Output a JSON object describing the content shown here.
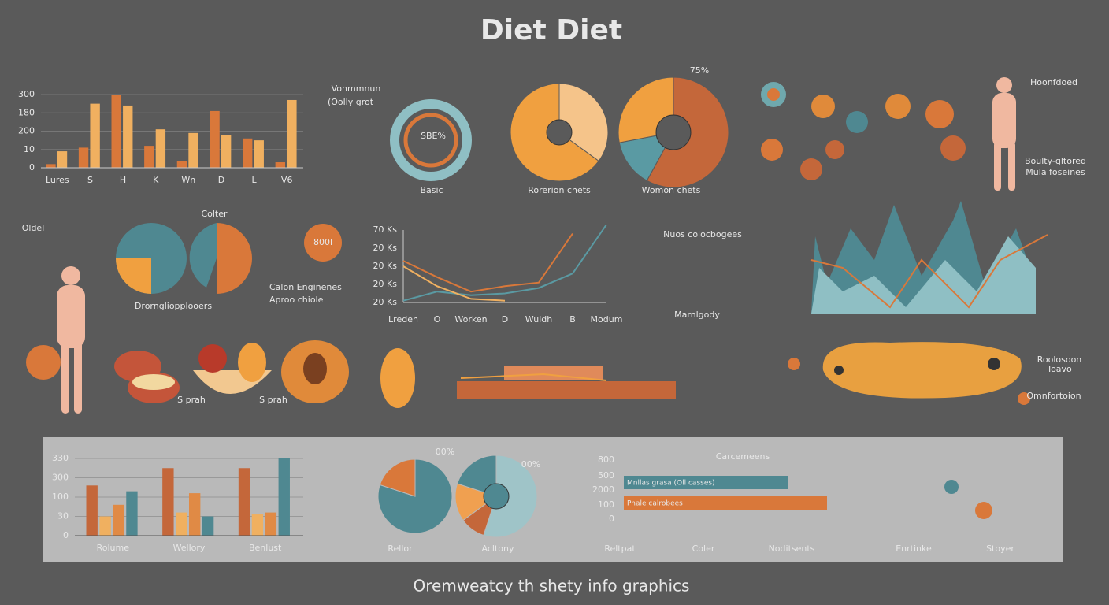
{
  "title": "Diet Diet",
  "subtitle": "Oremweatcy th shety info graphics",
  "chart_data": [
    {
      "type": "bar",
      "categories": [
        "Lures",
        "S",
        "H",
        "K",
        "Wn",
        "D",
        "L",
        "V6"
      ],
      "ylim": [
        0,
        4
      ],
      "yticks": [
        0,
        {
          "value": 1,
          "label": "10"
        },
        {
          "value": 2,
          "label": "200"
        },
        {
          "value": 3,
          "label": "180"
        },
        {
          "value": 4,
          "label": "300"
        }
      ],
      "grid": true,
      "series": [
        {
          "color": "#d9783a",
          "values": [
            0.2,
            1.1,
            4,
            1.2,
            0.35,
            3.1,
            1.6,
            0.3
          ]
        },
        {
          "color": "#f0b060",
          "values": [
            0.9,
            3.5,
            3.4,
            2.1,
            1.9,
            1.8,
            1.5,
            3.7
          ]
        }
      ]
    },
    {
      "type": "line",
      "categories": [
        "Lreden",
        "O",
        "Worken",
        "D",
        "Wuldh",
        "B",
        "Modum"
      ],
      "ylim": [
        0,
        4
      ],
      "yticks": [
        {
          "value": 0,
          "label": "20 Ks"
        },
        {
          "value": 1,
          "label": "20 Ks"
        },
        {
          "value": 2,
          "label": "20 Ks"
        },
        {
          "value": 3,
          "label": "20 Ks"
        },
        {
          "value": 4,
          "label": "70 Ks"
        }
      ],
      "series": [
        {
          "color": "#5a9aa3",
          "values": [
            0.1,
            0.6,
            0.4,
            0.5,
            0.8,
            1.6,
            4.3
          ]
        },
        {
          "color": "#d9783a",
          "values": [
            2.3,
            1.4,
            0.6,
            0.9,
            1.1,
            3.8,
            null
          ]
        },
        {
          "color": "#f0b060",
          "values": [
            2.0,
            0.9,
            0.2,
            0.1,
            null,
            null,
            null
          ]
        }
      ]
    },
    {
      "type": "bar",
      "categories": [
        "Rolume",
        "Wellory",
        "Benlust"
      ],
      "ylim": [
        0,
        4
      ],
      "yticks": [
        0,
        {
          "value": 1,
          "label": "30"
        },
        {
          "value": 2,
          "label": "100"
        },
        {
          "value": 3,
          "label": "300"
        },
        {
          "value": 4,
          "label": "330"
        }
      ],
      "grid": true,
      "series": [
        {
          "color": "#c4673a",
          "values": [
            2.6,
            3.5,
            3.5
          ]
        },
        {
          "color": "#f0b060",
          "values": [
            1.0,
            1.2,
            1.1
          ]
        },
        {
          "color": "#e08a45",
          "values": [
            1.6,
            2.2,
            1.2
          ]
        },
        {
          "color": "#4f8891",
          "values": [
            2.3,
            1.0,
            4.0
          ]
        }
      ]
    },
    {
      "type": "hbar",
      "categories": [
        "Mnllas grasa (Oll casses)",
        "Pnale calrobees"
      ],
      "xlim": [
        0,
        100
      ],
      "values": [
        81,
        100
      ],
      "colors": [
        "#4f8891",
        "#d9783a"
      ]
    },
    {
      "type": "pie",
      "values": [
        80,
        20
      ],
      "colors": [
        "#4f8891",
        "#d9783a"
      ]
    },
    {
      "type": "donut",
      "values": [
        55,
        10,
        15,
        20
      ],
      "colors": [
        "#9fc4c8",
        "#c4673a",
        "#f0a050",
        "#4f8891"
      ]
    },
    {
      "type": "donut",
      "values": [
        35,
        65
      ],
      "colors": [
        "#f5c48a",
        "#f0a040"
      ]
    },
    {
      "type": "pie",
      "values": [
        58,
        14,
        28
      ],
      "colors": [
        "#c4673a",
        "#5a9aa3",
        "#f0a040"
      ]
    }
  ],
  "labels": [
    "Vonmmnun",
    "(Oolly grot",
    "Basic",
    "Rorerion chets",
    "Womon chets",
    "75%",
    "Colter",
    "Oldel",
    "Calon Enginenes",
    "Aproo chiole",
    "Drorngliopplooers",
    "Nuos colocbogees",
    "Marnlgody",
    "Hoonfdoed",
    "Boulty-gltored",
    "Mula foseines",
    "Roolosoon",
    "Toavo",
    "Omnfortoion",
    "S prah",
    "S prah",
    "Carcemeens",
    "Reltpat",
    "Coler",
    "Noditsents",
    "Enrtinke",
    "Stoyer",
    "Rellor",
    "Acltony",
    "00%",
    "00%",
    "SBE%",
    "800l",
    "800",
    "500",
    "2000",
    "100",
    "0"
  ]
}
